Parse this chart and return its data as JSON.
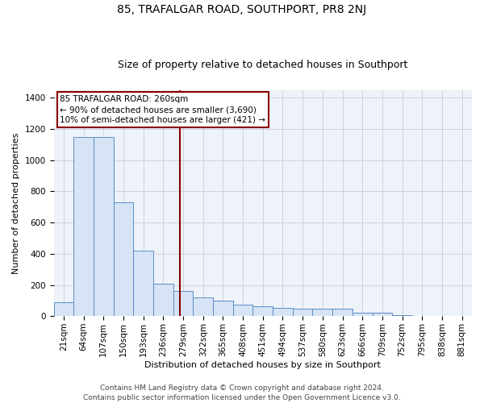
{
  "title": "85, TRAFALGAR ROAD, SOUTHPORT, PR8 2NJ",
  "subtitle": "Size of property relative to detached houses in Southport",
  "xlabel": "Distribution of detached houses by size in Southport",
  "ylabel": "Number of detached properties",
  "categories": [
    "21sqm",
    "64sqm",
    "107sqm",
    "150sqm",
    "193sqm",
    "236sqm",
    "279sqm",
    "322sqm",
    "365sqm",
    "408sqm",
    "451sqm",
    "494sqm",
    "537sqm",
    "580sqm",
    "623sqm",
    "666sqm",
    "709sqm",
    "752sqm",
    "795sqm",
    "838sqm",
    "881sqm"
  ],
  "values": [
    90,
    1150,
    1150,
    730,
    420,
    210,
    160,
    120,
    100,
    75,
    65,
    55,
    50,
    50,
    50,
    20,
    20,
    5,
    2,
    0,
    0
  ],
  "bar_color": "#d6e4f5",
  "bar_edge_color": "#5b8dc8",
  "bar_width": 1.0,
  "ylim": [
    0,
    1450
  ],
  "yticks": [
    0,
    200,
    400,
    600,
    800,
    1000,
    1200,
    1400
  ],
  "red_line_x": 5.85,
  "annotation_text_line1": "85 TRAFALGAR ROAD: 260sqm",
  "annotation_text_line2": "← 90% of detached houses are smaller (3,690)",
  "annotation_text_line3": "10% of semi-detached houses are larger (421) →",
  "footer_line1": "Contains HM Land Registry data © Crown copyright and database right 2024.",
  "footer_line2": "Contains public sector information licensed under the Open Government Licence v3.0.",
  "background_color": "#eef2f9",
  "grid_color": "#c8cfd8",
  "title_fontsize": 10,
  "subtitle_fontsize": 9,
  "axis_label_fontsize": 8,
  "tick_fontsize": 7.5,
  "annotation_fontsize": 7.5,
  "footer_fontsize": 6.5
}
